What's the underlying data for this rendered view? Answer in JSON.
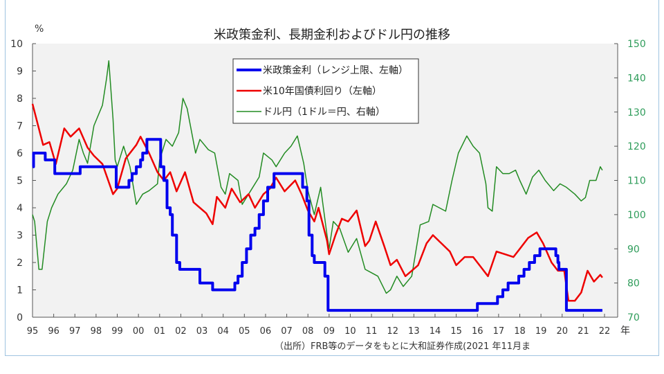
{
  "chart_data": {
    "type": "line",
    "title": "米政策金利、長期金利およびドル円の推移",
    "left_axis": {
      "unit": "%",
      "ylim": [
        0,
        10
      ],
      "ticks": [
        "0",
        "1",
        "2",
        "3",
        "4",
        "5",
        "6",
        "7",
        "8",
        "9",
        "10"
      ]
    },
    "right_axis": {
      "ylim": [
        70,
        150
      ],
      "ticks": [
        "70",
        "80",
        "90",
        "100",
        "110",
        "120",
        "130",
        "140",
        "150"
      ]
    },
    "x_axis": {
      "unit": "年",
      "xlim": [
        1995,
        2022
      ],
      "ticks": [
        "95",
        "96",
        "97",
        "98",
        "99",
        "00",
        "01",
        "02",
        "03",
        "04",
        "05",
        "06",
        "07",
        "08",
        "09",
        "10",
        "11",
        "12",
        "13",
        "14",
        "15",
        "16",
        "17",
        "18",
        "19",
        "20",
        "21",
        "22"
      ]
    },
    "source": "（出所）FRB等のデータをもとに大和証券作成(2021 年11月ま",
    "legend_placement": "top-center",
    "series": [
      {
        "name": "米政策金利（レンジ上限、左軸）",
        "axis": "left",
        "color": "#0000ee",
        "step": true,
        "points": [
          [
            1995.0,
            5.5
          ],
          [
            1995.05,
            6.0
          ],
          [
            1995.55,
            6.0
          ],
          [
            1995.6,
            5.75
          ],
          [
            1995.95,
            5.75
          ],
          [
            1996.05,
            5.25
          ],
          [
            1997.2,
            5.25
          ],
          [
            1997.25,
            5.5
          ],
          [
            1998.7,
            5.5
          ],
          [
            1998.95,
            4.75
          ],
          [
            1999.45,
            4.75
          ],
          [
            1999.55,
            5.0
          ],
          [
            1999.7,
            5.25
          ],
          [
            1999.9,
            5.5
          ],
          [
            2000.1,
            5.75
          ],
          [
            2000.2,
            6.0
          ],
          [
            2000.4,
            6.5
          ],
          [
            2000.95,
            6.5
          ],
          [
            2001.05,
            5.5
          ],
          [
            2001.2,
            5.0
          ],
          [
            2001.35,
            4.0
          ],
          [
            2001.5,
            3.75
          ],
          [
            2001.6,
            3.0
          ],
          [
            2001.8,
            2.0
          ],
          [
            2001.95,
            1.75
          ],
          [
            2002.85,
            1.75
          ],
          [
            2002.9,
            1.25
          ],
          [
            2003.45,
            1.25
          ],
          [
            2003.5,
            1.0
          ],
          [
            2004.45,
            1.0
          ],
          [
            2004.55,
            1.25
          ],
          [
            2004.7,
            1.5
          ],
          [
            2004.9,
            2.0
          ],
          [
            2005.1,
            2.5
          ],
          [
            2005.3,
            3.0
          ],
          [
            2005.5,
            3.25
          ],
          [
            2005.7,
            3.75
          ],
          [
            2005.9,
            4.25
          ],
          [
            2006.1,
            4.75
          ],
          [
            2006.4,
            5.25
          ],
          [
            2007.65,
            5.25
          ],
          [
            2007.75,
            4.75
          ],
          [
            2007.95,
            4.25
          ],
          [
            2008.05,
            3.0
          ],
          [
            2008.2,
            2.25
          ],
          [
            2008.3,
            2.0
          ],
          [
            2008.75,
            2.0
          ],
          [
            2008.8,
            1.5
          ],
          [
            2008.95,
            0.25
          ],
          [
            2015.95,
            0.25
          ],
          [
            2016.0,
            0.5
          ],
          [
            2016.9,
            0.5
          ],
          [
            2016.95,
            0.75
          ],
          [
            2017.2,
            1.0
          ],
          [
            2017.45,
            1.25
          ],
          [
            2017.95,
            1.5
          ],
          [
            2018.2,
            1.75
          ],
          [
            2018.45,
            2.0
          ],
          [
            2018.7,
            2.25
          ],
          [
            2018.95,
            2.5
          ],
          [
            2019.55,
            2.5
          ],
          [
            2019.7,
            2.25
          ],
          [
            2019.8,
            2.0
          ],
          [
            2019.85,
            1.75
          ],
          [
            2020.15,
            1.75
          ],
          [
            2020.2,
            0.25
          ],
          [
            2021.9,
            0.25
          ]
        ]
      },
      {
        "name": "米10年国債利回り（左軸）",
        "axis": "left",
        "color": "#ee0000",
        "points": [
          [
            1995.0,
            7.8
          ],
          [
            1995.2,
            7.2
          ],
          [
            1995.5,
            6.3
          ],
          [
            1995.8,
            6.4
          ],
          [
            1996.1,
            5.6
          ],
          [
            1996.5,
            6.9
          ],
          [
            1996.8,
            6.6
          ],
          [
            1997.2,
            6.9
          ],
          [
            1997.6,
            6.2
          ],
          [
            1997.9,
            5.9
          ],
          [
            1998.3,
            5.6
          ],
          [
            1998.8,
            4.5
          ],
          [
            1999.0,
            4.7
          ],
          [
            1999.4,
            5.8
          ],
          [
            1999.9,
            6.3
          ],
          [
            2000.1,
            6.6
          ],
          [
            2000.5,
            6.0
          ],
          [
            2000.9,
            5.3
          ],
          [
            2001.2,
            5.0
          ],
          [
            2001.5,
            5.3
          ],
          [
            2001.8,
            4.6
          ],
          [
            2002.2,
            5.3
          ],
          [
            2002.6,
            4.2
          ],
          [
            2002.9,
            4.0
          ],
          [
            2003.2,
            3.8
          ],
          [
            2003.5,
            3.4
          ],
          [
            2003.7,
            4.4
          ],
          [
            2004.1,
            4.0
          ],
          [
            2004.4,
            4.7
          ],
          [
            2004.8,
            4.2
          ],
          [
            2005.2,
            4.5
          ],
          [
            2005.5,
            4.0
          ],
          [
            2005.9,
            4.5
          ],
          [
            2006.2,
            4.7
          ],
          [
            2006.5,
            5.1
          ],
          [
            2006.9,
            4.6
          ],
          [
            2007.4,
            5.0
          ],
          [
            2007.7,
            4.5
          ],
          [
            2008.0,
            3.9
          ],
          [
            2008.3,
            3.5
          ],
          [
            2008.5,
            4.0
          ],
          [
            2008.9,
            2.8
          ],
          [
            2009.0,
            2.3
          ],
          [
            2009.3,
            3.0
          ],
          [
            2009.6,
            3.6
          ],
          [
            2009.9,
            3.5
          ],
          [
            2010.3,
            3.9
          ],
          [
            2010.7,
            2.6
          ],
          [
            2010.9,
            2.8
          ],
          [
            2011.2,
            3.5
          ],
          [
            2011.6,
            2.6
          ],
          [
            2011.9,
            1.9
          ],
          [
            2012.2,
            2.1
          ],
          [
            2012.6,
            1.5
          ],
          [
            2012.9,
            1.7
          ],
          [
            2013.2,
            1.9
          ],
          [
            2013.6,
            2.7
          ],
          [
            2013.9,
            3.0
          ],
          [
            2014.3,
            2.7
          ],
          [
            2014.7,
            2.4
          ],
          [
            2015.0,
            1.9
          ],
          [
            2015.4,
            2.2
          ],
          [
            2015.8,
            2.2
          ],
          [
            2016.2,
            1.8
          ],
          [
            2016.5,
            1.5
          ],
          [
            2016.9,
            2.4
          ],
          [
            2017.3,
            2.3
          ],
          [
            2017.7,
            2.2
          ],
          [
            2018.0,
            2.5
          ],
          [
            2018.4,
            2.9
          ],
          [
            2018.8,
            3.1
          ],
          [
            2019.1,
            2.7
          ],
          [
            2019.5,
            2.0
          ],
          [
            2019.8,
            1.7
          ],
          [
            2020.1,
            1.7
          ],
          [
            2020.3,
            0.6
          ],
          [
            2020.6,
            0.6
          ],
          [
            2020.9,
            0.9
          ],
          [
            2021.2,
            1.7
          ],
          [
            2021.5,
            1.3
          ],
          [
            2021.8,
            1.55
          ],
          [
            2021.9,
            1.45
          ]
        ]
      },
      {
        "name": "ドル円（1ドル＝円、右軸）",
        "axis": "right",
        "color": "#228b22",
        "points": [
          [
            1995.0,
            100
          ],
          [
            1995.1,
            98
          ],
          [
            1995.3,
            84
          ],
          [
            1995.45,
            84
          ],
          [
            1995.7,
            98
          ],
          [
            1995.9,
            102
          ],
          [
            1996.2,
            106
          ],
          [
            1996.6,
            109
          ],
          [
            1996.9,
            113
          ],
          [
            1997.2,
            122
          ],
          [
            1997.4,
            118
          ],
          [
            1997.6,
            115
          ],
          [
            1997.9,
            126
          ],
          [
            1998.3,
            132
          ],
          [
            1998.5,
            140
          ],
          [
            1998.6,
            145
          ],
          [
            1998.8,
            128
          ],
          [
            1998.9,
            116
          ],
          [
            1999.0,
            114
          ],
          [
            1999.3,
            120
          ],
          [
            1999.6,
            114
          ],
          [
            1999.9,
            103
          ],
          [
            2000.2,
            106
          ],
          [
            2000.5,
            107
          ],
          [
            2000.9,
            109
          ],
          [
            2001.0,
            116
          ],
          [
            2001.3,
            122
          ],
          [
            2001.6,
            120
          ],
          [
            2001.9,
            124
          ],
          [
            2002.1,
            134
          ],
          [
            2002.3,
            131
          ],
          [
            2002.7,
            118
          ],
          [
            2002.9,
            122
          ],
          [
            2003.3,
            119
          ],
          [
            2003.6,
            118
          ],
          [
            2003.9,
            108
          ],
          [
            2004.1,
            106
          ],
          [
            2004.3,
            112
          ],
          [
            2004.7,
            110
          ],
          [
            2004.9,
            103
          ],
          [
            2005.3,
            107
          ],
          [
            2005.7,
            111
          ],
          [
            2005.9,
            118
          ],
          [
            2006.3,
            116
          ],
          [
            2006.5,
            114
          ],
          [
            2006.9,
            118
          ],
          [
            2007.2,
            120
          ],
          [
            2007.5,
            123
          ],
          [
            2007.8,
            115
          ],
          [
            2008.0,
            107
          ],
          [
            2008.3,
            100
          ],
          [
            2008.6,
            108
          ],
          [
            2008.9,
            94
          ],
          [
            2009.0,
            90
          ],
          [
            2009.2,
            98
          ],
          [
            2009.5,
            96
          ],
          [
            2009.9,
            89
          ],
          [
            2010.3,
            93
          ],
          [
            2010.7,
            84
          ],
          [
            2011.0,
            83
          ],
          [
            2011.3,
            82
          ],
          [
            2011.7,
            77
          ],
          [
            2011.9,
            78
          ],
          [
            2012.2,
            82
          ],
          [
            2012.5,
            79
          ],
          [
            2012.9,
            82
          ],
          [
            2013.3,
            97
          ],
          [
            2013.7,
            98
          ],
          [
            2013.9,
            103
          ],
          [
            2014.2,
            102
          ],
          [
            2014.5,
            101
          ],
          [
            2014.8,
            110
          ],
          [
            2015.1,
            118
          ],
          [
            2015.5,
            123
          ],
          [
            2015.8,
            120
          ],
          [
            2016.1,
            118
          ],
          [
            2016.4,
            109
          ],
          [
            2016.5,
            102
          ],
          [
            2016.7,
            101
          ],
          [
            2016.9,
            114
          ],
          [
            2017.2,
            112
          ],
          [
            2017.5,
            112
          ],
          [
            2017.8,
            113
          ],
          [
            2018.0,
            110
          ],
          [
            2018.3,
            106
          ],
          [
            2018.6,
            111
          ],
          [
            2018.9,
            113
          ],
          [
            2019.2,
            110
          ],
          [
            2019.6,
            107
          ],
          [
            2019.9,
            109
          ],
          [
            2020.2,
            108
          ],
          [
            2020.6,
            106
          ],
          [
            2020.9,
            104
          ],
          [
            2021.1,
            105
          ],
          [
            2021.3,
            110
          ],
          [
            2021.6,
            110
          ],
          [
            2021.8,
            114
          ],
          [
            2021.9,
            113
          ]
        ]
      }
    ]
  }
}
